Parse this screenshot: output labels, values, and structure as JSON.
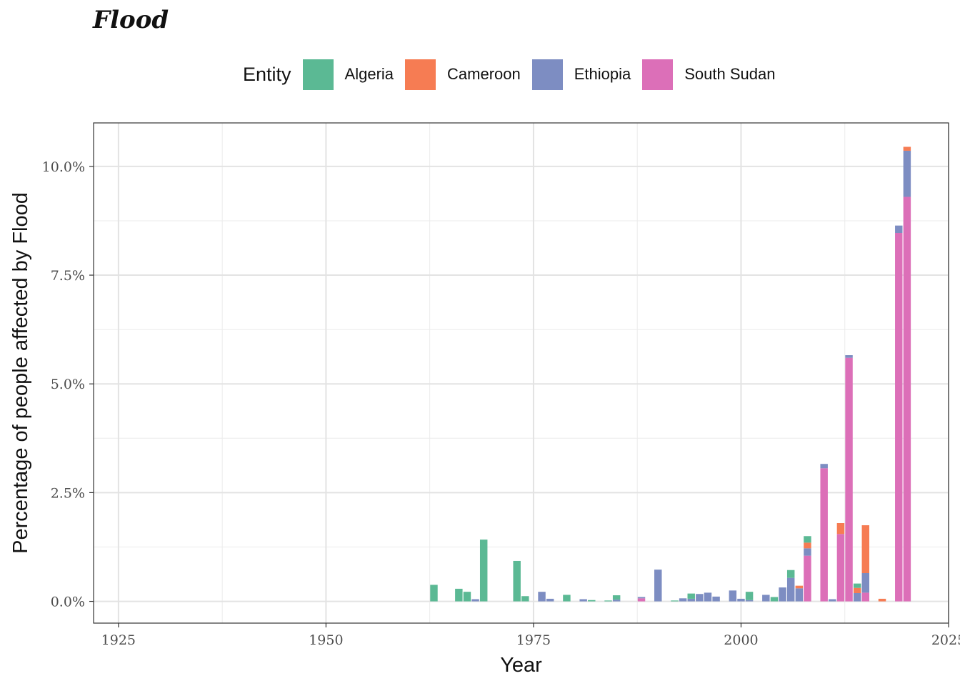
{
  "title": "Flood",
  "legend": {
    "title": "Entity",
    "items": [
      {
        "label": "Algeria",
        "color": "#5bb994"
      },
      {
        "label": "Cameroon",
        "color": "#f67c53"
      },
      {
        "label": "Ethiopia",
        "color": "#7d8dc2"
      },
      {
        "label": "South Sudan",
        "color": "#dc6fb8"
      }
    ]
  },
  "chart_data": {
    "type": "bar",
    "stacked": true,
    "title": "Flood",
    "xlabel": "Year",
    "ylabel": "Percentage of people affected by Flood",
    "xlim": [
      1922,
      2025
    ],
    "ylim": [
      -0.5,
      11.0
    ],
    "x_ticks": [
      1925,
      1950,
      1975,
      2000,
      2025
    ],
    "x_tick_labels": [
      "1925",
      "1950",
      "1975",
      "2000",
      "2025"
    ],
    "y_ticks": [
      0,
      2.5,
      5,
      7.5,
      10
    ],
    "y_tick_labels": [
      "0.0%",
      "2.5%",
      "5.0%",
      "7.5%",
      "10.0%"
    ],
    "grid": true,
    "legend_position": "top",
    "series_order": [
      "South Sudan",
      "Ethiopia",
      "Cameroon",
      "Algeria"
    ],
    "series": [
      {
        "name": "Algeria",
        "color": "#5bb994",
        "points": [
          [
            1963,
            0.38
          ],
          [
            1966,
            0.29
          ],
          [
            1967,
            0.22
          ],
          [
            1969,
            1.42
          ],
          [
            1973,
            0.93
          ],
          [
            1974,
            0.12
          ],
          [
            1979,
            0.15
          ],
          [
            1982,
            0.03
          ],
          [
            1984,
            0.02
          ],
          [
            1985,
            0.1
          ],
          [
            1992,
            0.02
          ],
          [
            1994,
            0.12
          ],
          [
            2001,
            0.19
          ],
          [
            2004,
            0.1
          ],
          [
            2006,
            0.18
          ],
          [
            2008,
            0.15
          ],
          [
            2014,
            0.1
          ]
        ]
      },
      {
        "name": "Cameroon",
        "color": "#f67c53",
        "points": [
          [
            2007,
            0.06
          ],
          [
            2008,
            0.13
          ],
          [
            2012,
            0.25
          ],
          [
            2014,
            0.12
          ],
          [
            2015,
            1.1
          ],
          [
            2017,
            0.06
          ],
          [
            2020,
            0.09
          ]
        ]
      },
      {
        "name": "Ethiopia",
        "color": "#7d8dc2",
        "points": [
          [
            1968,
            0.05
          ],
          [
            1976,
            0.22
          ],
          [
            1977,
            0.06
          ],
          [
            1981,
            0.05
          ],
          [
            1985,
            0.04
          ],
          [
            1988,
            0.03
          ],
          [
            1990,
            0.73
          ],
          [
            1993,
            0.07
          ],
          [
            1994,
            0.06
          ],
          [
            1995,
            0.17
          ],
          [
            1996,
            0.2
          ],
          [
            1997,
            0.11
          ],
          [
            1999,
            0.25
          ],
          [
            2000,
            0.06
          ],
          [
            2001,
            0.03
          ],
          [
            2003,
            0.15
          ],
          [
            2005,
            0.32
          ],
          [
            2006,
            0.54
          ],
          [
            2007,
            0.3
          ],
          [
            2008,
            0.17
          ],
          [
            2010,
            0.1
          ],
          [
            2011,
            0.05
          ],
          [
            2013,
            0.06
          ],
          [
            2014,
            0.19
          ],
          [
            2015,
            0.45
          ],
          [
            2019,
            0.17
          ],
          [
            2020,
            1.06
          ]
        ]
      },
      {
        "name": "South Sudan",
        "color": "#dc6fb8",
        "points": [
          [
            1988,
            0.07
          ],
          [
            2008,
            1.05
          ],
          [
            2010,
            3.06
          ],
          [
            2012,
            1.55
          ],
          [
            2013,
            5.6
          ],
          [
            2015,
            0.2
          ],
          [
            2019,
            8.47
          ],
          [
            2020,
            9.3
          ]
        ]
      }
    ]
  }
}
